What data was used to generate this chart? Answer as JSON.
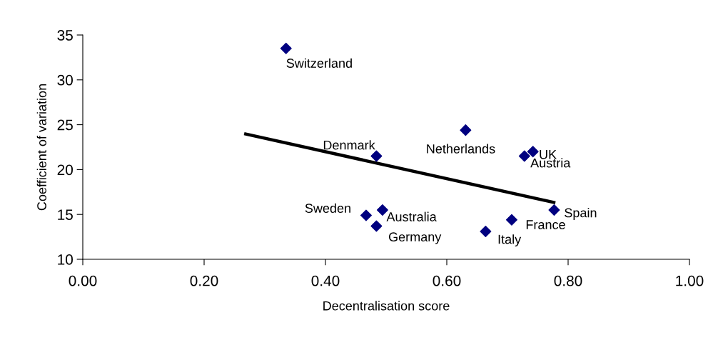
{
  "chart_data": {
    "type": "scatter",
    "xlabel": "Decentralisation score",
    "ylabel": "Coefficient of variation",
    "xlim": [
      0,
      1
    ],
    "xticks": [
      {
        "value": 0,
        "label": "0.00"
      },
      {
        "value": 0.2,
        "label": "0.20"
      },
      {
        "value": 0.4,
        "label": "0.40"
      },
      {
        "value": 0.6,
        "label": "0.60"
      },
      {
        "value": 0.8,
        "label": "0.80"
      },
      {
        "value": 1,
        "label": "1.00"
      }
    ],
    "ylim": [
      10,
      35
    ],
    "yticks": [
      10,
      15,
      20,
      25,
      30,
      35
    ],
    "series": [
      {
        "marker": "diamond",
        "color": "#000080",
        "x": [
          0.335,
          0.484,
          0.467,
          0.494,
          0.484,
          0.631,
          0.742,
          0.728,
          0.777,
          0.707,
          0.664
        ],
        "values": [
          33.5,
          21.5,
          14.9,
          15.5,
          13.7,
          24.4,
          22.0,
          21.5,
          15.5,
          14.4,
          13.1
        ]
      },
      {
        "type": "line",
        "color": "#000000",
        "x": [
          0.266,
          0.779
        ],
        "values": [
          24.0,
          16.3
        ]
      }
    ],
    "annotations": [
      {
        "text": "Switzerland",
        "x": 0.335,
        "y": 33.5
      },
      {
        "text": "Denmark",
        "x": 0.484,
        "y": 21.5
      },
      {
        "text": "Sweden",
        "x": 0.467,
        "y": 14.9
      },
      {
        "text": "Australia",
        "x": 0.494,
        "y": 15.5
      },
      {
        "text": "Germany",
        "x": 0.484,
        "y": 13.7
      },
      {
        "text": "Netherlands",
        "x": 0.631,
        "y": 24.4
      },
      {
        "text": "UK",
        "x": 0.742,
        "y": 22.0
      },
      {
        "text": "Austria",
        "x": 0.728,
        "y": 21.5
      },
      {
        "text": "Spain",
        "x": 0.777,
        "y": 15.5
      },
      {
        "text": "France",
        "x": 0.707,
        "y": 14.4
      },
      {
        "text": "Italy",
        "x": 0.664,
        "y": 13.1
      }
    ]
  }
}
